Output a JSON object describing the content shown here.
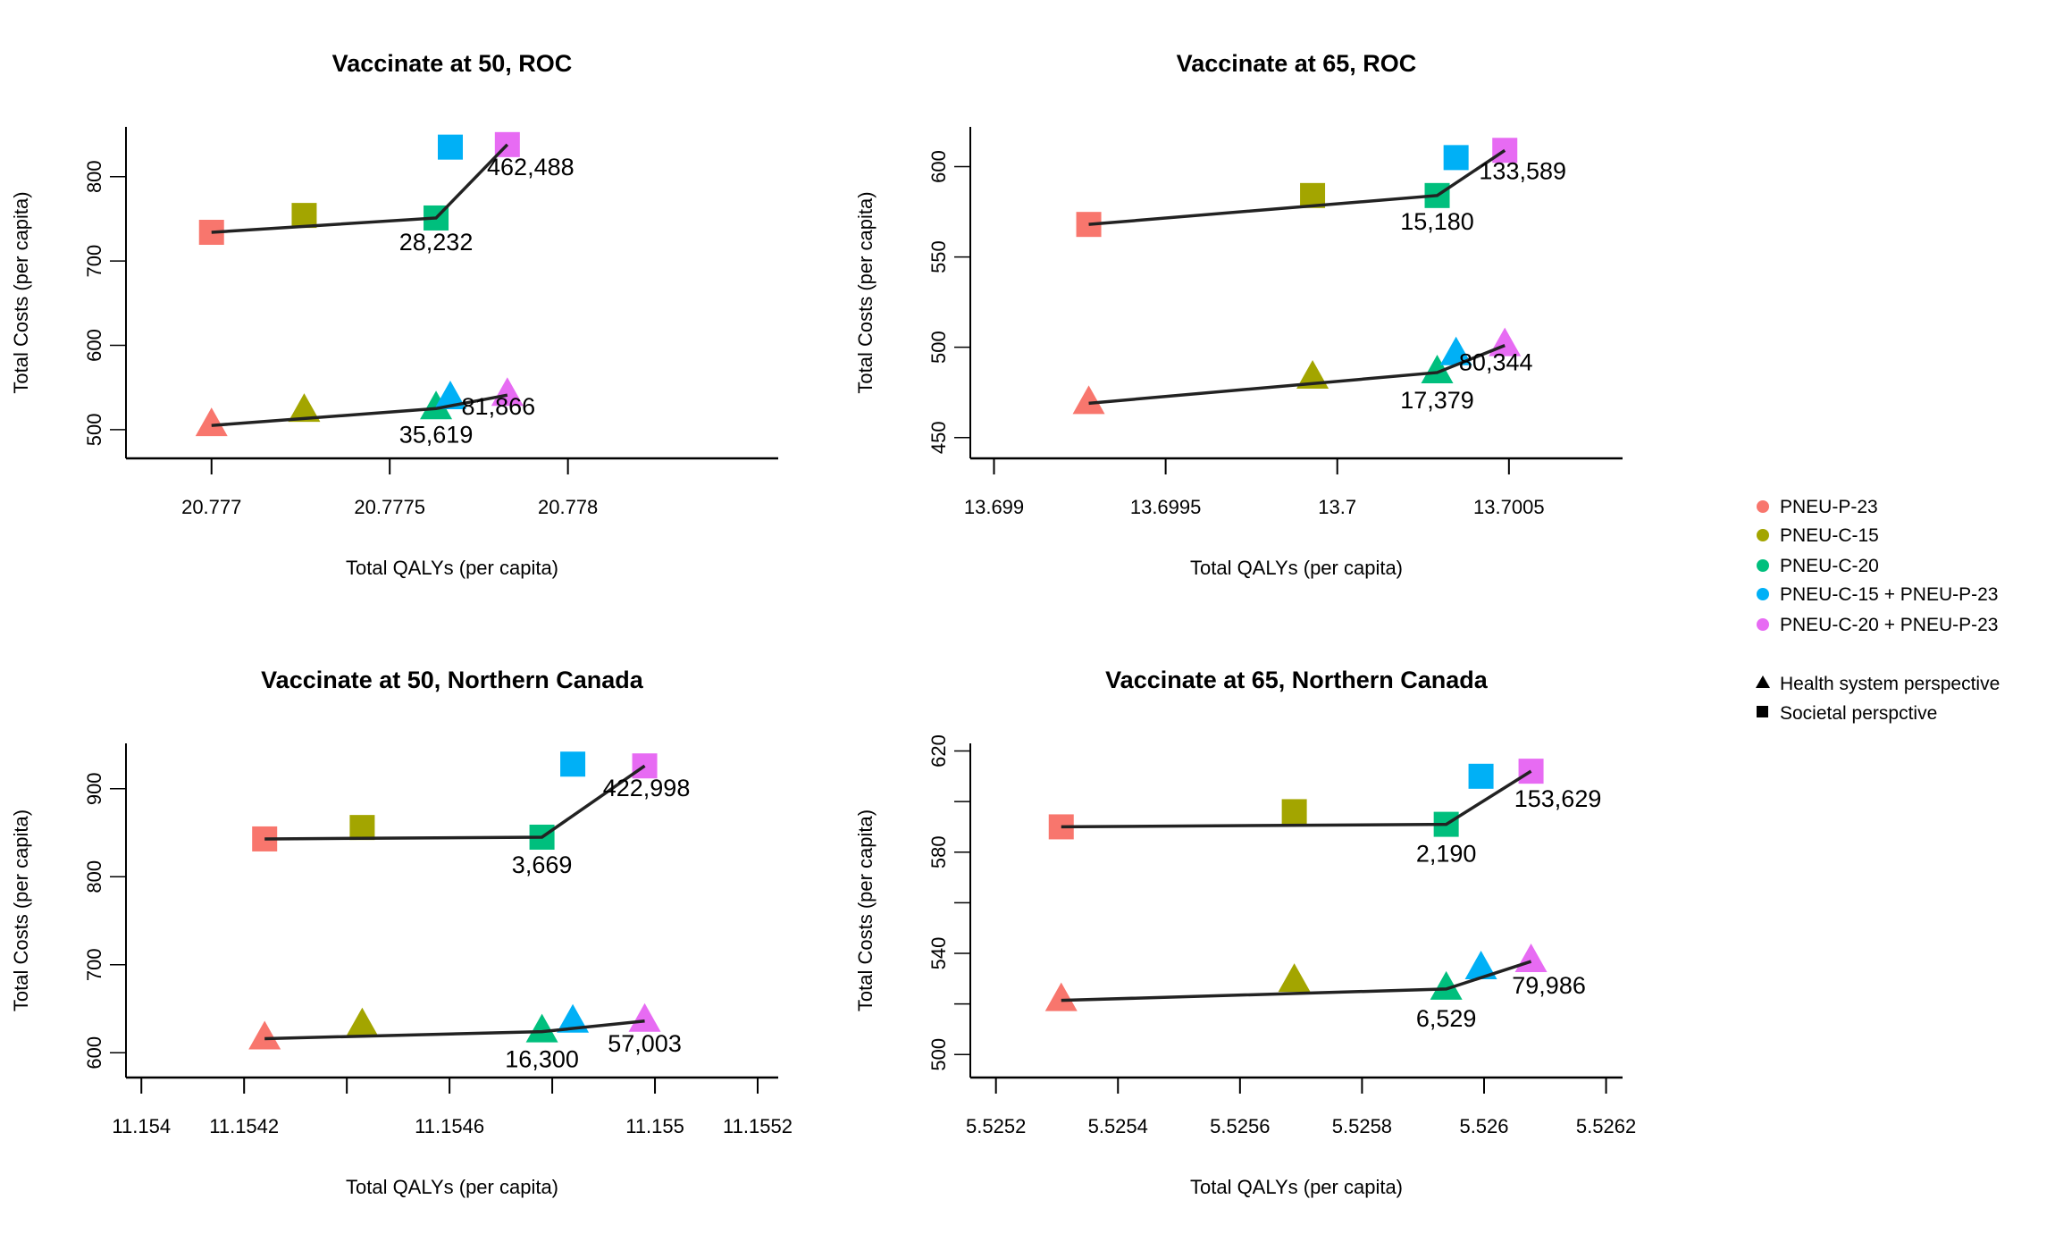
{
  "colors": {
    "PNEU-P-23": "#F8766D",
    "PNEU-C-15": "#A3A500",
    "PNEU-C-20": "#00BF7D",
    "PNEU-C-15 + PNEU-P-23": "#00B0F6",
    "PNEU-C-20 + PNEU-P-23": "#E76BF3"
  },
  "legend": {
    "strategies": [
      "PNEU-P-23",
      "PNEU-C-15",
      "PNEU-C-20",
      "PNEU-C-15 + PNEU-P-23",
      "PNEU-C-20 + PNEU-P-23"
    ],
    "shapes": [
      {
        "shape": "triangle",
        "label": "Health system perspective"
      },
      {
        "shape": "square",
        "label": "Societal perspctive"
      }
    ],
    "placement": "right"
  },
  "chart_data": [
    {
      "type": "scatter",
      "title": "Vaccinate at 50, ROC",
      "xlabel": "Total QALYs (per capita)",
      "ylabel": "Total Costs (per capita)",
      "xlim": [
        20.77676,
        20.77859
      ],
      "ylim": [
        466,
        859
      ],
      "xticks": [
        {
          "v": 20.777,
          "label": "20.777"
        },
        {
          "v": 20.7775,
          "label": "20.7775"
        },
        {
          "v": 20.778,
          "label": "20.778"
        }
      ],
      "yticks": [
        {
          "v": 500,
          "label": "500"
        },
        {
          "v": 600,
          "label": "600"
        },
        {
          "v": 700,
          "label": "700"
        },
        {
          "v": 800,
          "label": "800"
        }
      ],
      "series": [
        {
          "perspective": "Societal perspctive",
          "shape": "square",
          "x": [
            20.777,
            20.77726,
            20.77763,
            20.77767,
            20.77783
          ],
          "y": [
            734,
            754,
            751,
            835,
            838
          ],
          "frontier": [
            0,
            2,
            4
          ],
          "icers": [
            {
              "point": 2,
              "label": "28,232"
            },
            {
              "point": 4,
              "label": "462,488"
            }
          ]
        },
        {
          "perspective": "Health system perspective",
          "shape": "triangle",
          "x": [
            20.777,
            20.77726,
            20.77763,
            20.77767,
            20.77783
          ],
          "y": [
            505,
            522,
            525,
            537,
            541
          ],
          "frontier": [
            0,
            2,
            4
          ],
          "icers": [
            {
              "point": 2,
              "label": "35,619"
            },
            {
              "point": 4,
              "label": "81,866"
            }
          ]
        }
      ]
    },
    {
      "type": "scatter",
      "title": "Vaccinate at 65, ROC",
      "xlabel": "Total QALYs (per capita)",
      "ylabel": "Total Costs (per capita)",
      "xlim": [
        13.698931,
        13.700831
      ],
      "ylim": [
        438.5,
        622
      ],
      "xticks": [
        {
          "v": 13.699,
          "label": "13.699"
        },
        {
          "v": 13.6995,
          "label": "13.6995"
        },
        {
          "v": 13.7,
          "label": "13.7"
        },
        {
          "v": 13.7005,
          "label": "13.7005"
        }
      ],
      "yticks": [
        {
          "v": 450,
          "label": "450"
        },
        {
          "v": 500,
          "label": "500"
        },
        {
          "v": 550,
          "label": "550"
        },
        {
          "v": 600,
          "label": "600"
        }
      ],
      "series": [
        {
          "perspective": "Societal perspctive",
          "shape": "square",
          "x": [
            13.699276,
            13.699928,
            13.700291,
            13.700346,
            13.700488
          ],
          "y": [
            568,
            584,
            584,
            605,
            609
          ],
          "frontier": [
            0,
            2,
            4
          ],
          "icers": [
            {
              "point": 2,
              "label": "15,180"
            },
            {
              "point": 4,
              "label": "133,589"
            }
          ]
        },
        {
          "perspective": "Health system perspective",
          "shape": "triangle",
          "x": [
            13.699276,
            13.699928,
            13.700291,
            13.700346,
            13.700488
          ],
          "y": [
            469,
            483,
            486,
            496,
            501
          ],
          "frontier": [
            0,
            2,
            4
          ],
          "icers": [
            {
              "point": 2,
              "label": "17,379"
            },
            {
              "point": 4,
              "label": "80,344"
            }
          ]
        }
      ]
    },
    {
      "type": "scatter",
      "title": "Vaccinate at 50, Northern Canada",
      "xlabel": "Total QALYs (per capita)",
      "ylabel": "Total Costs (per capita)",
      "xlim": [
        11.15397,
        11.15524
      ],
      "ylim": [
        571.8,
        951.6
      ],
      "xticks": [
        {
          "v": 11.154,
          "label": "11.154"
        },
        {
          "v": 11.1542,
          "label": "11.1542"
        },
        {
          "v": 11.1544,
          "label": ""
        },
        {
          "v": 11.1546,
          "label": "11.1546"
        },
        {
          "v": 11.1548,
          "label": ""
        },
        {
          "v": 11.155,
          "label": "11.155"
        },
        {
          "v": 11.1552,
          "label": "11.1552"
        }
      ],
      "yticks": [
        {
          "v": 600,
          "label": "600"
        },
        {
          "v": 700,
          "label": "700"
        },
        {
          "v": 800,
          "label": "800"
        },
        {
          "v": 900,
          "label": "900"
        }
      ],
      "series": [
        {
          "perspective": "Societal perspctive",
          "shape": "square",
          "x": [
            11.15424,
            11.15443,
            11.15478,
            11.15484,
            11.15498
          ],
          "y": [
            843,
            856,
            845,
            928,
            926
          ],
          "frontier": [
            0,
            2,
            4
          ],
          "icers": [
            {
              "point": 2,
              "label": "3,669"
            },
            {
              "point": 4,
              "label": "422,998"
            }
          ]
        },
        {
          "perspective": "Health system perspective",
          "shape": "triangle",
          "x": [
            11.15424,
            11.15443,
            11.15478,
            11.15484,
            11.15498
          ],
          "y": [
            616,
            631,
            624,
            635,
            636
          ],
          "frontier": [
            0,
            2,
            4
          ],
          "icers": [
            {
              "point": 2,
              "label": "16,300"
            },
            {
              "point": 4,
              "label": "57,003"
            }
          ]
        }
      ]
    },
    {
      "type": "scatter",
      "title": "Vaccinate at 65, Northern Canada",
      "xlabel": "Total QALYs (per capita)",
      "ylabel": "Total Costs (per capita)",
      "xlim": [
        5.525158,
        5.526227
      ],
      "ylim": [
        490.9,
        623
      ],
      "xticks": [
        {
          "v": 5.5252,
          "label": "5.5252"
        },
        {
          "v": 5.5254,
          "label": "5.5254"
        },
        {
          "v": 5.5256,
          "label": "5.5256"
        },
        {
          "v": 5.5258,
          "label": "5.5258"
        },
        {
          "v": 5.526,
          "label": "5.526"
        },
        {
          "v": 5.5262,
          "label": "5.5262"
        }
      ],
      "yticks": [
        {
          "v": 500,
          "label": "500"
        },
        {
          "v": 520,
          "label": ""
        },
        {
          "v": 540,
          "label": "540"
        },
        {
          "v": 560,
          "label": ""
        },
        {
          "v": 580,
          "label": "580"
        },
        {
          "v": 600,
          "label": ""
        },
        {
          "v": 620,
          "label": "620"
        }
      ],
      "series": [
        {
          "perspective": "Societal perspctive",
          "shape": "square",
          "x": [
            5.525307,
            5.525689,
            5.525938,
            5.525995,
            5.526077
          ],
          "y": [
            590,
            596,
            591,
            610,
            612
          ],
          "frontier": [
            0,
            2,
            4
          ],
          "icers": [
            {
              "point": 2,
              "label": "2,190"
            },
            {
              "point": 4,
              "label": "153,629"
            }
          ]
        },
        {
          "perspective": "Health system perspective",
          "shape": "triangle",
          "x": [
            5.525307,
            5.525689,
            5.525938,
            5.525995,
            5.526077
          ],
          "y": [
            521.4,
            529,
            525.9,
            534,
            536.8
          ],
          "frontier": [
            0,
            2,
            4
          ],
          "icers": [
            {
              "point": 2,
              "label": "6,529"
            },
            {
              "point": 4,
              "label": "79,986"
            }
          ]
        }
      ]
    }
  ]
}
